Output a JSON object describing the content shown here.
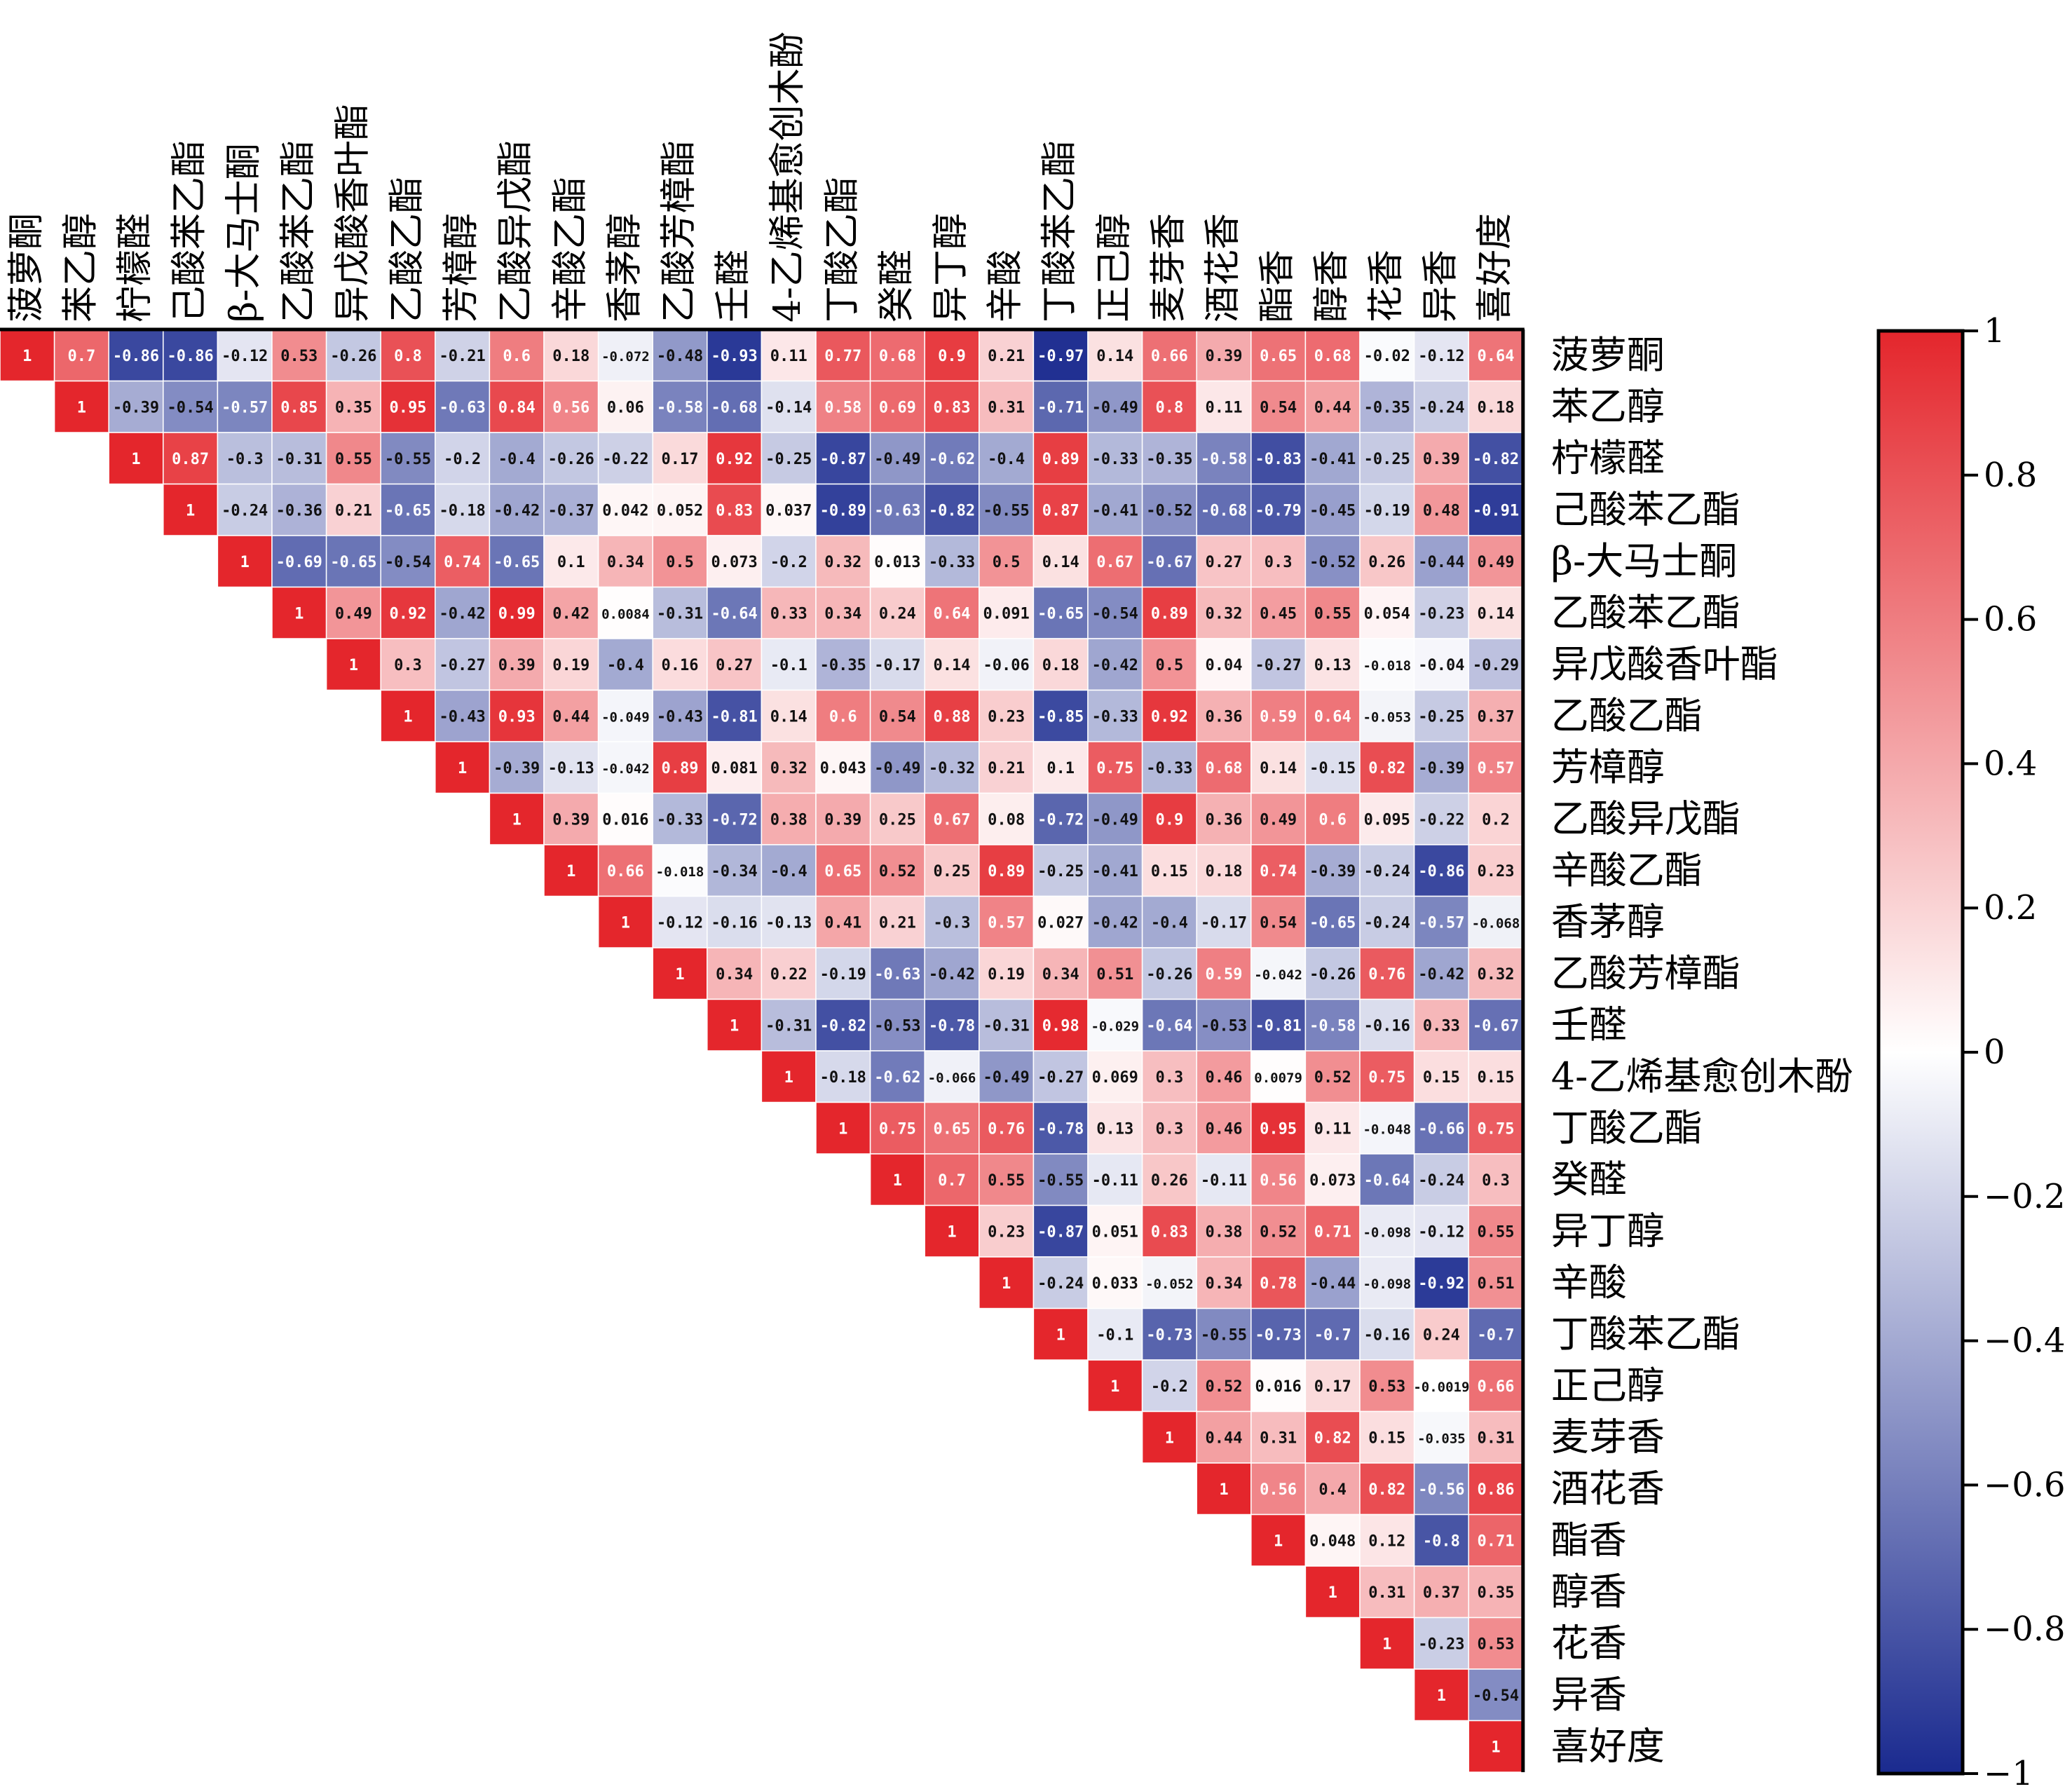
{
  "chart_data": {
    "type": "heatmap",
    "layout": "upper-triangle",
    "labels": [
      "菠萝酮",
      "苯乙醇",
      "柠檬醛",
      "己酸苯乙酯",
      "β-大马士酮",
      "乙酸苯乙酯",
      "异戊酸香叶酯",
      "乙酸乙酯",
      "芳樟醇",
      "乙酸异戊酯",
      "辛酸乙酯",
      "香茅醇",
      "乙酸芳樟酯",
      "壬醛",
      "4-乙烯基愈创木酚",
      "丁酸乙酯",
      "癸醛",
      "异丁醇",
      "辛酸",
      "丁酸苯乙酯",
      "正己醇",
      "麦芽香",
      "酒花香",
      "酯香",
      "醇香",
      "花香",
      "异香",
      "喜好度"
    ],
    "rows": [
      [
        "1",
        "0.7",
        "-0.86",
        "-0.86",
        "-0.12",
        "0.53",
        "-0.26",
        "0.8",
        "-0.21",
        "0.6",
        "0.18",
        "-0.072",
        "-0.48",
        "-0.93",
        "0.11",
        "0.77",
        "0.68",
        "0.9",
        "0.21",
        "-0.97",
        "0.14",
        "0.66",
        "0.39",
        "0.65",
        "0.68",
        "-0.02",
        "-0.12",
        "0.64"
      ],
      [
        "1",
        "-0.39",
        "-0.54",
        "-0.57",
        "0.85",
        "0.35",
        "0.95",
        "-0.63",
        "0.84",
        "0.56",
        "0.06",
        "-0.58",
        "-0.68",
        "-0.14",
        "0.58",
        "0.69",
        "0.83",
        "0.31",
        "-0.71",
        "-0.49",
        "0.8",
        "0.11",
        "0.54",
        "0.44",
        "-0.35",
        "-0.24",
        "0.18"
      ],
      [
        "1",
        "0.87",
        "-0.3",
        "-0.31",
        "0.55",
        "-0.55",
        "-0.2",
        "-0.4",
        "-0.26",
        "-0.22",
        "0.17",
        "0.92",
        "-0.25",
        "-0.87",
        "-0.49",
        "-0.62",
        "-0.4",
        "0.89",
        "-0.33",
        "-0.35",
        "-0.58",
        "-0.83",
        "-0.41",
        "-0.25",
        "0.39",
        "-0.82"
      ],
      [
        "1",
        "-0.24",
        "-0.36",
        "0.21",
        "-0.65",
        "-0.18",
        "-0.42",
        "-0.37",
        "0.042",
        "0.052",
        "0.83",
        "0.037",
        "-0.89",
        "-0.63",
        "-0.82",
        "-0.55",
        "0.87",
        "-0.41",
        "-0.52",
        "-0.68",
        "-0.79",
        "-0.45",
        "-0.19",
        "0.48",
        "-0.91"
      ],
      [
        "1",
        "-0.69",
        "-0.65",
        "-0.54",
        "0.74",
        "-0.65",
        "0.1",
        "0.34",
        "0.5",
        "0.073",
        "-0.2",
        "0.32",
        "0.013",
        "-0.33",
        "0.5",
        "0.14",
        "0.67",
        "-0.67",
        "0.27",
        "0.3",
        "-0.52",
        "0.26",
        "-0.44",
        "0.49"
      ],
      [
        "1",
        "0.49",
        "0.92",
        "-0.42",
        "0.99",
        "0.42",
        "0.0084",
        "-0.31",
        "-0.64",
        "0.33",
        "0.34",
        "0.24",
        "0.64",
        "0.091",
        "-0.65",
        "-0.54",
        "0.89",
        "0.32",
        "0.45",
        "0.55",
        "0.054",
        "-0.23",
        "0.14"
      ],
      [
        "1",
        "0.3",
        "-0.27",
        "0.39",
        "0.19",
        "-0.4",
        "0.16",
        "0.27",
        "-0.1",
        "-0.35",
        "-0.17",
        "0.14",
        "-0.06",
        "0.18",
        "-0.42",
        "0.5",
        "0.04",
        "-0.27",
        "0.13",
        "-0.018",
        "-0.04",
        "-0.29"
      ],
      [
        "1",
        "-0.43",
        "0.93",
        "0.44",
        "-0.049",
        "-0.43",
        "-0.81",
        "0.14",
        "0.6",
        "0.54",
        "0.88",
        "0.23",
        "-0.85",
        "-0.33",
        "0.92",
        "0.36",
        "0.59",
        "0.64",
        "-0.053",
        "-0.25",
        "0.37"
      ],
      [
        "1",
        "-0.39",
        "-0.13",
        "-0.042",
        "0.89",
        "0.081",
        "0.32",
        "0.043",
        "-0.49",
        "-0.32",
        "0.21",
        "0.1",
        "0.75",
        "-0.33",
        "0.68",
        "0.14",
        "-0.15",
        "0.82",
        "-0.39",
        "0.57"
      ],
      [
        "1",
        "0.39",
        "0.016",
        "-0.33",
        "-0.72",
        "0.38",
        "0.39",
        "0.25",
        "0.67",
        "0.08",
        "-0.72",
        "-0.49",
        "0.9",
        "0.36",
        "0.49",
        "0.6",
        "0.095",
        "-0.22",
        "0.2"
      ],
      [
        "1",
        "0.66",
        "-0.018",
        "-0.34",
        "-0.4",
        "0.65",
        "0.52",
        "0.25",
        "0.89",
        "-0.25",
        "-0.41",
        "0.15",
        "0.18",
        "0.74",
        "-0.39",
        "-0.24",
        "-0.86",
        "0.23"
      ],
      [
        "1",
        "-0.12",
        "-0.16",
        "-0.13",
        "0.41",
        "0.21",
        "-0.3",
        "0.57",
        "0.027",
        "-0.42",
        "-0.4",
        "-0.17",
        "0.54",
        "-0.65",
        "-0.24",
        "-0.57",
        "-0.068"
      ],
      [
        "1",
        "0.34",
        "0.22",
        "-0.19",
        "-0.63",
        "-0.42",
        "0.19",
        "0.34",
        "0.51",
        "-0.26",
        "0.59",
        "-0.042",
        "-0.26",
        "0.76",
        "-0.42",
        "0.32"
      ],
      [
        "1",
        "-0.31",
        "-0.82",
        "-0.53",
        "-0.78",
        "-0.31",
        "0.98",
        "-0.029",
        "-0.64",
        "-0.53",
        "-0.81",
        "-0.58",
        "-0.16",
        "0.33",
        "-0.67"
      ],
      [
        "1",
        "-0.18",
        "-0.62",
        "-0.066",
        "-0.49",
        "-0.27",
        "0.069",
        "0.3",
        "0.46",
        "0.0079",
        "0.52",
        "0.75",
        "0.15",
        "0.15"
      ],
      [
        "1",
        "0.75",
        "0.65",
        "0.76",
        "-0.78",
        "0.13",
        "0.3",
        "0.46",
        "0.95",
        "0.11",
        "-0.048",
        "-0.66",
        "0.75"
      ],
      [
        "1",
        "0.7",
        "0.55",
        "-0.55",
        "-0.11",
        "0.26",
        "-0.11",
        "0.56",
        "0.073",
        "-0.64",
        "-0.24",
        "0.3"
      ],
      [
        "1",
        "0.23",
        "-0.87",
        "0.051",
        "0.83",
        "0.38",
        "0.52",
        "0.71",
        "-0.098",
        "-0.12",
        "0.55"
      ],
      [
        "1",
        "-0.24",
        "0.033",
        "-0.052",
        "0.34",
        "0.78",
        "-0.44",
        "-0.098",
        "-0.92",
        "0.51"
      ],
      [
        "1",
        "-0.1",
        "-0.73",
        "-0.55",
        "-0.73",
        "-0.7",
        "-0.16",
        "0.24",
        "-0.7"
      ],
      [
        "1",
        "-0.2",
        "0.52",
        "0.016",
        "0.17",
        "0.53",
        "-0.0019",
        "0.66"
      ],
      [
        "1",
        "0.44",
        "0.31",
        "0.82",
        "0.15",
        "-0.035",
        "0.31"
      ],
      [
        "1",
        "0.56",
        "0.4",
        "0.82",
        "-0.56",
        "0.86"
      ],
      [
        "1",
        "0.048",
        "0.12",
        "-0.8",
        "0.71"
      ],
      [
        "1",
        "0.31",
        "0.37",
        "0.35"
      ],
      [
        "1",
        "-0.23",
        "0.53"
      ],
      [
        "1",
        "-0.54"
      ],
      [
        "1"
      ]
    ],
    "row_value_labels": [
      "1",
      "0.7",
      "-0.86",
      "-0.86",
      "-0.12",
      "0.53",
      "-0.26",
      "0.8",
      "-0.21",
      "0.6",
      "0.18",
      "-0.072",
      "-0.48",
      "-0.93",
      "0.11",
      "0.77",
      "0.68",
      "0.9",
      "0.21",
      "-0.97",
      "0.14",
      "0.66",
      "0.39",
      "0.65",
      "0.68",
      "-0.02",
      "-0.12",
      "0.64"
    ],
    "colorbar": {
      "min": -1,
      "max": 1,
      "ticks": [
        "1",
        "0.8",
        "0.6",
        "0.4",
        "0.2",
        "0",
        "−0.2",
        "−0.4",
        "−0.6",
        "−0.8",
        "−1"
      ],
      "colors": {
        "low": "#1a2a8f",
        "mid": "#ffffff",
        "high": "#e4262c"
      }
    }
  }
}
